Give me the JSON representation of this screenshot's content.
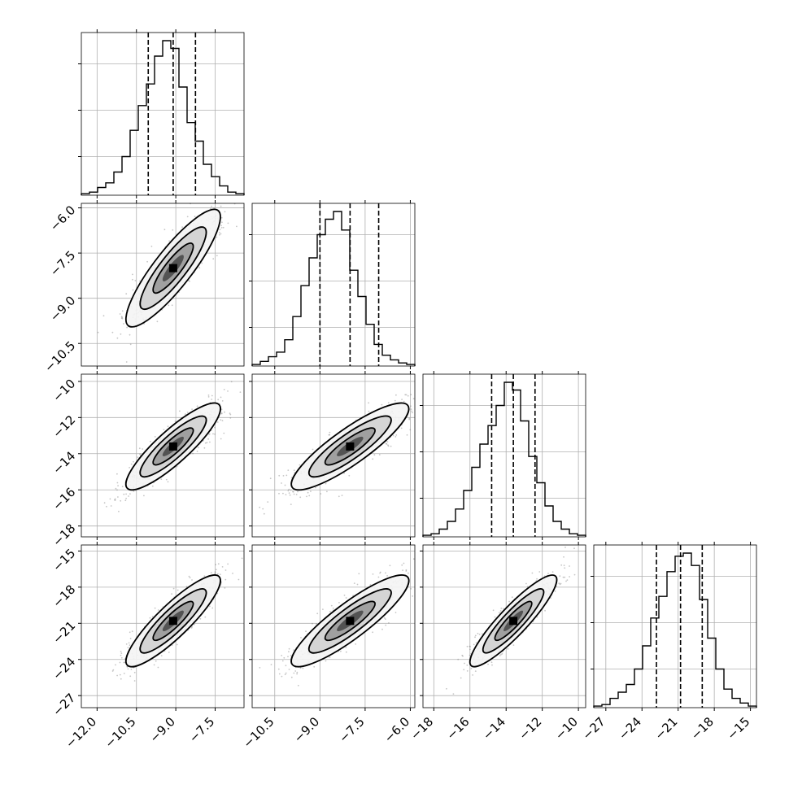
{
  "chart_data": {
    "type": "corner",
    "grid": true,
    "parameters": [
      {
        "range": [
          -12.6,
          -6.4
        ],
        "ticks": [
          -12.0,
          -10.5,
          -9.0,
          -7.5
        ],
        "tick_labels": [
          "−12.0",
          "−10.5",
          "−9.0",
          "−7.5"
        ],
        "quantiles": [
          -10.05,
          -9.1,
          -8.25
        ]
      },
      {
        "range": [
          -11.25,
          -5.85
        ],
        "ticks": [
          -10.5,
          -9.0,
          -7.5,
          -6.0
        ],
        "tick_labels": [
          "−10.5",
          "−9.0",
          "−7.5",
          "−6.0"
        ],
        "quantiles": [
          -9.0,
          -8.0,
          -7.05
        ]
      },
      {
        "range": [
          -18.6,
          -9.6
        ],
        "ticks": [
          -18,
          -16,
          -14,
          -12,
          -10
        ],
        "tick_labels": [
          "−18",
          "−16",
          "−14",
          "−12",
          "−10"
        ],
        "quantiles": [
          -14.8,
          -13.6,
          -12.4
        ]
      },
      {
        "range": [
          -28.0,
          -14.5
        ],
        "ticks": [
          -27,
          -24,
          -21,
          -18,
          -15
        ],
        "tick_labels": [
          "−27",
          "−24",
          "−21",
          "−18",
          "−15"
        ],
        "quantiles": [
          -22.8,
          -20.8,
          -19.0
        ]
      }
    ],
    "diagonal_histograms": [
      [
        0.01,
        0.02,
        0.05,
        0.08,
        0.15,
        0.25,
        0.42,
        0.58,
        0.72,
        0.9,
        1.0,
        0.95,
        0.7,
        0.47,
        0.35,
        0.2,
        0.12,
        0.06,
        0.02,
        0.01
      ],
      [
        0.01,
        0.03,
        0.06,
        0.09,
        0.17,
        0.32,
        0.52,
        0.7,
        0.85,
        0.95,
        1.0,
        0.88,
        0.62,
        0.45,
        0.27,
        0.14,
        0.07,
        0.04,
        0.02,
        0.01
      ],
      [
        0.01,
        0.02,
        0.05,
        0.1,
        0.18,
        0.3,
        0.45,
        0.6,
        0.72,
        0.85,
        1.0,
        0.95,
        0.75,
        0.52,
        0.35,
        0.2,
        0.1,
        0.05,
        0.02,
        0.01
      ],
      [
        0.01,
        0.02,
        0.06,
        0.1,
        0.15,
        0.25,
        0.4,
        0.58,
        0.72,
        0.88,
        0.98,
        1.0,
        0.92,
        0.7,
        0.45,
        0.25,
        0.12,
        0.06,
        0.03,
        0.01
      ]
    ],
    "correlations": {
      "1-0": 0.87,
      "2-0": 0.87,
      "2-1": 0.87,
      "3-0": 0.88,
      "3-1": 0.88,
      "3-2": 0.9
    }
  }
}
